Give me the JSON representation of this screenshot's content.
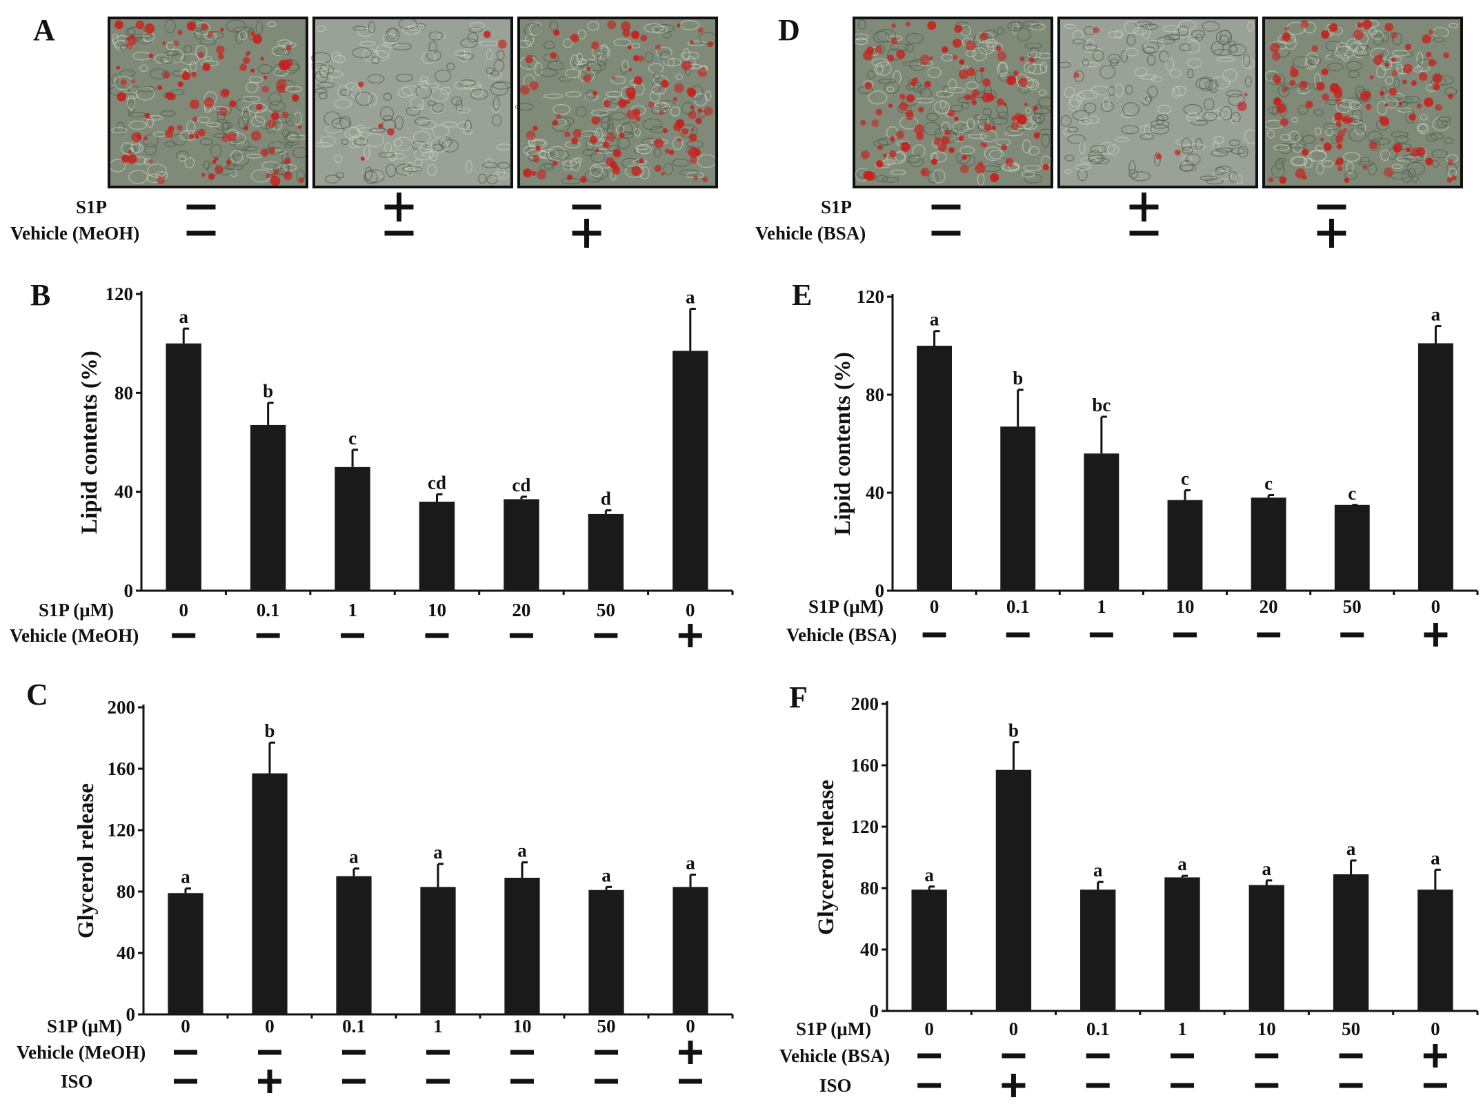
{
  "panels": [
    {
      "letter": "A",
      "kind": "images",
      "images": [
        {
          "name": "control",
          "palette": "red-dense"
        },
        {
          "name": "s1p",
          "palette": "clear"
        },
        {
          "name": "vehicle",
          "palette": "red-dense"
        }
      ],
      "rows": [
        {
          "label": "S1P",
          "signs": [
            "−",
            "+",
            "−"
          ]
        },
        {
          "label": "Vehicle (MeOH)",
          "signs": [
            "−",
            "−",
            "+"
          ]
        }
      ]
    },
    {
      "letter": "D",
      "kind": "images",
      "images": [
        {
          "name": "control",
          "palette": "red-dense"
        },
        {
          "name": "s1p",
          "palette": "clear"
        },
        {
          "name": "vehicle",
          "palette": "red-dense"
        }
      ],
      "rows": [
        {
          "label": "S1P",
          "signs": [
            "−",
            "+",
            "−"
          ]
        },
        {
          "label": "Vehicle (BSA)",
          "signs": [
            "−",
            "−",
            "+"
          ]
        }
      ]
    }
  ],
  "chart_data": [
    {
      "letter": "B",
      "type": "bar",
      "ylabel": "Lipid contents (%)",
      "ylim": [
        0,
        120
      ],
      "yticks": [
        0,
        40,
        80,
        120
      ],
      "values": [
        100,
        67,
        50,
        36,
        37,
        31,
        97
      ],
      "errors": [
        6,
        9,
        7,
        3,
        1,
        1.5,
        17
      ],
      "letters": [
        "a",
        "b",
        "c",
        "cd",
        "cd",
        "d",
        "a"
      ],
      "rows": [
        {
          "label": "S1P (μM)",
          "values": [
            "0",
            "0.1",
            "1",
            "10",
            "20",
            "50",
            "0"
          ]
        },
        {
          "label": "Vehicle (MeOH)",
          "values": [
            "−",
            "−",
            "−",
            "−",
            "−",
            "−",
            "+"
          ]
        }
      ]
    },
    {
      "letter": "C",
      "type": "bar",
      "ylabel": "Glycerol release",
      "ylim": [
        0,
        200
      ],
      "yticks": [
        0,
        40,
        80,
        120,
        160,
        200
      ],
      "values": [
        79,
        157,
        90,
        83,
        89,
        81,
        83
      ],
      "errors": [
        3,
        20,
        5,
        15,
        10,
        2,
        8
      ],
      "letters": [
        "a",
        "b",
        "a",
        "a",
        "a",
        "a",
        "a"
      ],
      "rows": [
        {
          "label": "S1P (μM)",
          "values": [
            "0",
            "0",
            "0.1",
            "1",
            "10",
            "50",
            "0"
          ]
        },
        {
          "label": "Vehicle (MeOH)",
          "values": [
            "−",
            "−",
            "−",
            "−",
            "−",
            "−",
            "+"
          ]
        },
        {
          "label": "ISO",
          "values": [
            "−",
            "+",
            "−",
            "−",
            "−",
            "−",
            "−"
          ]
        }
      ]
    },
    {
      "letter": "E",
      "type": "bar",
      "ylabel": "Lipid contents (%)",
      "ylim": [
        0,
        120
      ],
      "yticks": [
        0,
        40,
        80,
        120
      ],
      "values": [
        100,
        67,
        56,
        37,
        38,
        35,
        101
      ],
      "errors": [
        6,
        15,
        15,
        4,
        1,
        0,
        7
      ],
      "letters": [
        "a",
        "b",
        "bc",
        "c",
        "c",
        "c",
        "a"
      ],
      "rows": [
        {
          "label": "S1P (μM)",
          "values": [
            "0",
            "0.1",
            "1",
            "10",
            "20",
            "50",
            "0"
          ]
        },
        {
          "label": "Vehicle (BSA)",
          "values": [
            "−",
            "−",
            "−",
            "−",
            "−",
            "−",
            "+"
          ]
        }
      ]
    },
    {
      "letter": "F",
      "type": "bar",
      "ylabel": "Glycerol release",
      "ylim": [
        0,
        200
      ],
      "yticks": [
        0,
        40,
        80,
        120,
        160,
        200
      ],
      "values": [
        79,
        157,
        79,
        87,
        82,
        89,
        79
      ],
      "errors": [
        2,
        18,
        5,
        1,
        3,
        9,
        13
      ],
      "letters": [
        "a",
        "b",
        "a",
        "a",
        "a",
        "a",
        "a"
      ],
      "rows": [
        {
          "label": "S1P (μM)",
          "values": [
            "0",
            "0",
            "0.1",
            "1",
            "10",
            "50",
            "0"
          ]
        },
        {
          "label": "Vehicle (BSA)",
          "values": [
            "−",
            "−",
            "−",
            "−",
            "−",
            "−",
            "+"
          ]
        },
        {
          "label": "ISO",
          "values": [
            "−",
            "+",
            "−",
            "−",
            "−",
            "−",
            "−"
          ]
        }
      ]
    }
  ],
  "colors": {
    "bar": "#1a1a1a",
    "ink": "#111111",
    "tissue": "#7f8b78",
    "stain": "#c8201c"
  }
}
